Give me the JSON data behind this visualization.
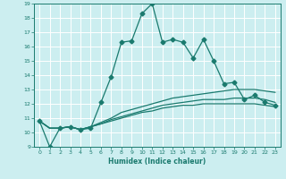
{
  "xlabel": "Humidex (Indice chaleur)",
  "bg_color": "#cceef0",
  "grid_color": "#ffffff",
  "line_color": "#1a7a6e",
  "xlim": [
    -0.5,
    23.5
  ],
  "ylim": [
    9,
    19
  ],
  "xticks": [
    0,
    1,
    2,
    3,
    4,
    5,
    6,
    7,
    8,
    9,
    10,
    11,
    12,
    13,
    14,
    15,
    16,
    17,
    18,
    19,
    20,
    21,
    22,
    23
  ],
  "yticks": [
    9,
    10,
    11,
    12,
    13,
    14,
    15,
    16,
    17,
    18,
    19
  ],
  "series": [
    [
      10.8,
      9.0,
      10.3,
      10.4,
      10.2,
      10.3,
      12.1,
      13.9,
      16.3,
      16.4,
      18.3,
      19.0,
      16.3,
      16.5,
      16.3,
      15.2,
      16.5,
      15.0,
      13.4,
      13.5,
      12.3,
      12.6,
      12.1,
      11.9
    ],
    [
      10.8,
      10.3,
      10.3,
      10.4,
      10.2,
      10.4,
      10.7,
      11.0,
      11.4,
      11.6,
      11.8,
      12.0,
      12.2,
      12.4,
      12.5,
      12.6,
      12.7,
      12.8,
      12.9,
      13.0,
      13.0,
      13.0,
      12.9,
      12.8
    ],
    [
      10.8,
      10.3,
      10.3,
      10.4,
      10.2,
      10.4,
      10.6,
      10.9,
      11.1,
      11.3,
      11.5,
      11.7,
      11.9,
      12.0,
      12.1,
      12.2,
      12.3,
      12.3,
      12.3,
      12.4,
      12.4,
      12.4,
      12.3,
      12.1
    ],
    [
      10.8,
      10.3,
      10.3,
      10.4,
      10.2,
      10.4,
      10.6,
      10.8,
      11.0,
      11.2,
      11.4,
      11.5,
      11.7,
      11.8,
      11.9,
      11.9,
      12.0,
      12.0,
      12.0,
      12.0,
      12.0,
      12.0,
      11.9,
      11.8
    ]
  ],
  "marker": "D",
  "markersize": 2.5,
  "linewidth": 0.9
}
